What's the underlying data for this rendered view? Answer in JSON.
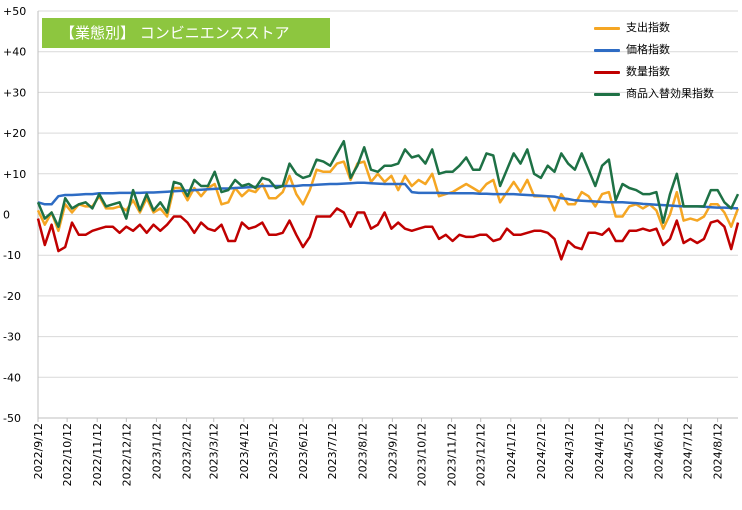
{
  "chart_data": {
    "type": "line",
    "title": "【業態別】 コンビニエンスストア",
    "x_dates": [
      "2022/9/12",
      "2022/9/19",
      "2022/9/26",
      "2022/10/3",
      "2022/10/10",
      "2022/10/17",
      "2022/10/24",
      "2022/10/31",
      "2022/11/7",
      "2022/11/14",
      "2022/11/21",
      "2022/11/28",
      "2022/12/5",
      "2022/12/12",
      "2022/12/19",
      "2022/12/26",
      "2023/1/2",
      "2023/1/9",
      "2023/1/16",
      "2023/1/23",
      "2023/1/30",
      "2023/2/6",
      "2023/2/13",
      "2023/2/20",
      "2023/2/27",
      "2023/3/6",
      "2023/3/13",
      "2023/3/20",
      "2023/3/27",
      "2023/4/3",
      "2023/4/10",
      "2023/4/17",
      "2023/4/24",
      "2023/5/1",
      "2023/5/8",
      "2023/5/15",
      "2023/5/22",
      "2023/5/29",
      "2023/6/5",
      "2023/6/12",
      "2023/6/19",
      "2023/6/26",
      "2023/7/3",
      "2023/7/10",
      "2023/7/17",
      "2023/7/24",
      "2023/7/31",
      "2023/8/7",
      "2023/8/14",
      "2023/8/21",
      "2023/8/28",
      "2023/9/4",
      "2023/9/11",
      "2023/9/18",
      "2023/9/25",
      "2023/10/2",
      "2023/10/9",
      "2023/10/16",
      "2023/10/23",
      "2023/10/30",
      "2023/11/6",
      "2023/11/13",
      "2023/11/20",
      "2023/11/27",
      "2023/12/4",
      "2023/12/11",
      "2023/12/18",
      "2023/12/25",
      "2024/1/1",
      "2024/1/8",
      "2024/1/15",
      "2024/1/22",
      "2024/1/29",
      "2024/2/5",
      "2024/2/12",
      "2024/2/19",
      "2024/2/26",
      "2024/3/4",
      "2024/3/11",
      "2024/3/18",
      "2024/3/25",
      "2024/4/1",
      "2024/4/8",
      "2024/4/15",
      "2024/4/22",
      "2024/4/29",
      "2024/5/6",
      "2024/5/13",
      "2024/5/20",
      "2024/5/27",
      "2024/6/3",
      "2024/6/10",
      "2024/6/17",
      "2024/6/24",
      "2024/7/1",
      "2024/7/8",
      "2024/7/15",
      "2024/7/22",
      "2024/7/29",
      "2024/8/5",
      "2024/8/12",
      "2024/8/19",
      "2024/8/26",
      "2024/9/2"
    ],
    "x_tick_labels": [
      "2022/9/12",
      "2022/10/12",
      "2022/11/12",
      "2022/12/12",
      "2023/1/12",
      "2023/2/12",
      "2023/3/12",
      "2023/4/12",
      "2023/5/12",
      "2023/6/12",
      "2023/7/12",
      "2023/8/12",
      "2023/9/12",
      "2023/10/12",
      "2023/11/12",
      "2023/12/12",
      "2024/1/12",
      "2024/2/12",
      "2024/3/12",
      "2024/4/12",
      "2024/5/12",
      "2024/6/12",
      "2024/7/12",
      "2024/8/12"
    ],
    "x_range": [
      "2022/9/12",
      "2024/9/2"
    ],
    "ylim": [
      -50,
      50
    ],
    "y_ticks": [
      50,
      40,
      30,
      20,
      10,
      0,
      -10,
      -20,
      -30,
      -40,
      -50
    ],
    "y_tick_labels": [
      "+50",
      "+40",
      "+30",
      "+20",
      "+10",
      "0",
      "-10",
      "-20",
      "-30",
      "-40",
      "-50"
    ],
    "grid": "horizontal",
    "legend_position": "top-right",
    "series": [
      {
        "name": "支出指数",
        "color": "#f5a623",
        "values": [
          1.0,
          -2.5,
          0.5,
          -4.0,
          2.5,
          0.5,
          2.5,
          2.0,
          2.0,
          4.5,
          1.5,
          1.5,
          2.0,
          1.0,
          3.5,
          0.5,
          4.0,
          0.5,
          1.5,
          -0.5,
          6.5,
          6.5,
          3.5,
          6.5,
          4.5,
          6.5,
          7.5,
          2.5,
          3.0,
          6.5,
          4.5,
          6.0,
          5.5,
          7.5,
          4.0,
          4.0,
          5.5,
          9.5,
          5.0,
          2.5,
          6.0,
          11.0,
          10.5,
          10.5,
          12.5,
          13.0,
          8.5,
          12.5,
          13.0,
          8.0,
          10.0,
          8.0,
          9.5,
          6.0,
          9.5,
          7.0,
          8.5,
          7.5,
          10.0,
          4.5,
          5.0,
          5.5,
          6.5,
          7.5,
          6.5,
          5.5,
          7.5,
          8.5,
          3.0,
          5.5,
          8.0,
          5.5,
          8.5,
          4.5,
          4.5,
          4.5,
          1.0,
          5.0,
          2.5,
          2.5,
          5.5,
          4.5,
          2.0,
          5.0,
          5.5,
          -0.5,
          -0.5,
          2.0,
          2.5,
          1.5,
          2.5,
          1.0,
          -3.5,
          0.0,
          5.5,
          -1.5,
          -1.0,
          -1.5,
          -0.5,
          2.5,
          2.5,
          0.5,
          -3.0,
          1.5
        ]
      },
      {
        "name": "価格指数",
        "color": "#2e6cc4",
        "values": [
          3.0,
          2.5,
          2.5,
          4.5,
          4.8,
          4.8,
          4.9,
          5.0,
          5.0,
          5.2,
          5.2,
          5.2,
          5.3,
          5.3,
          5.3,
          5.3,
          5.4,
          5.4,
          5.5,
          5.6,
          5.7,
          5.8,
          5.9,
          6.0,
          6.1,
          6.2,
          6.3,
          6.4,
          6.4,
          6.5,
          6.6,
          6.7,
          6.8,
          7.0,
          7.0,
          7.0,
          7.0,
          7.0,
          7.0,
          7.2,
          7.2,
          7.3,
          7.4,
          7.5,
          7.5,
          7.6,
          7.7,
          7.8,
          7.8,
          7.7,
          7.6,
          7.5,
          7.5,
          7.5,
          7.5,
          5.5,
          5.3,
          5.3,
          5.3,
          5.3,
          5.2,
          5.2,
          5.2,
          5.2,
          5.2,
          5.1,
          5.1,
          5.0,
          5.0,
          5.0,
          5.0,
          4.9,
          4.8,
          4.7,
          4.6,
          4.5,
          4.4,
          4.0,
          3.8,
          3.5,
          3.4,
          3.3,
          3.2,
          3.1,
          3.0,
          3.0,
          3.0,
          2.9,
          2.8,
          2.6,
          2.5,
          2.4,
          2.3,
          2.2,
          2.1,
          2.0,
          2.0,
          2.0,
          1.9,
          1.8,
          1.7,
          1.7,
          1.6,
          1.5
        ]
      },
      {
        "name": "数量指数",
        "color": "#c00000",
        "values": [
          -1.0,
          -7.5,
          -2.5,
          -9.0,
          -8.0,
          -2.0,
          -5.0,
          -5.0,
          -4.0,
          -3.5,
          -3.0,
          -3.0,
          -4.5,
          -3.0,
          -4.0,
          -2.5,
          -4.5,
          -2.5,
          -4.0,
          -2.5,
          -0.5,
          -0.5,
          -2.0,
          -4.5,
          -2.0,
          -3.5,
          -4.0,
          -2.5,
          -6.5,
          -6.5,
          -2.0,
          -3.5,
          -3.0,
          -2.0,
          -5.0,
          -5.0,
          -4.5,
          -1.5,
          -5.0,
          -8.0,
          -5.5,
          -0.5,
          -0.5,
          -0.5,
          1.5,
          0.5,
          -3.0,
          0.5,
          0.5,
          -3.5,
          -2.5,
          0.5,
          -3.5,
          -2.0,
          -3.5,
          -4.0,
          -3.5,
          -3.0,
          -3.0,
          -6.0,
          -5.0,
          -6.5,
          -5.0,
          -5.5,
          -5.5,
          -5.0,
          -5.0,
          -6.5,
          -6.0,
          -3.5,
          -5.0,
          -5.0,
          -4.5,
          -4.0,
          -4.0,
          -4.5,
          -6.0,
          -11.0,
          -6.5,
          -8.0,
          -8.5,
          -4.5,
          -4.5,
          -5.0,
          -3.5,
          -6.5,
          -6.5,
          -4.0,
          -4.0,
          -3.5,
          -4.0,
          -3.5,
          -7.5,
          -6.0,
          -1.5,
          -7.0,
          -6.0,
          -7.0,
          -6.0,
          -2.0,
          -1.5,
          -3.0,
          -8.5,
          -2.0
        ]
      },
      {
        "name": "商品入替効果指数",
        "color": "#1e7145",
        "values": [
          3.0,
          -1.0,
          0.5,
          -3.0,
          4.0,
          1.5,
          2.5,
          3.0,
          1.5,
          5.0,
          2.0,
          2.5,
          3.0,
          -1.0,
          6.0,
          1.0,
          5.0,
          1.0,
          3.0,
          0.5,
          8.0,
          7.5,
          4.5,
          8.5,
          7.0,
          7.0,
          10.5,
          5.5,
          6.0,
          8.5,
          7.0,
          7.5,
          6.5,
          9.0,
          8.5,
          6.5,
          7.0,
          12.5,
          10.0,
          9.0,
          9.5,
          13.5,
          13.0,
          12.0,
          15.0,
          18.0,
          9.0,
          12.0,
          16.5,
          11.0,
          10.5,
          12.0,
          12.0,
          12.5,
          16.0,
          14.0,
          14.5,
          12.5,
          16.0,
          10.0,
          10.5,
          10.5,
          12.0,
          14.0,
          11.0,
          11.0,
          15.0,
          14.5,
          7.0,
          11.0,
          15.0,
          12.5,
          16.0,
          10.0,
          9.0,
          12.0,
          10.5,
          15.0,
          12.5,
          11.0,
          15.0,
          11.0,
          7.0,
          12.0,
          13.5,
          3.5,
          7.5,
          6.5,
          6.0,
          5.0,
          5.0,
          5.5,
          -2.0,
          5.0,
          10.0,
          2.0,
          2.0,
          2.0,
          2.0,
          6.0,
          6.0,
          3.0,
          1.5,
          5.0
        ]
      }
    ]
  }
}
